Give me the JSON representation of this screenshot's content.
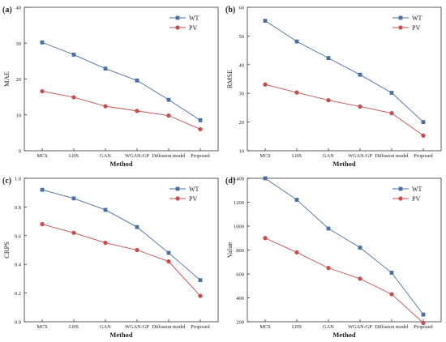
{
  "chart_data": [
    {
      "type": "line",
      "panel_label": "(a)",
      "xlabel": "Method",
      "ylabel": "MAE",
      "categories": [
        "MCS",
        "LHS",
        "GAN",
        "WGAN-GP",
        "Diffusion model",
        "Proposed"
      ],
      "ylim": [
        0,
        40
      ],
      "yticks": [
        0,
        10,
        20,
        30,
        40
      ],
      "grid": false,
      "legend": "top-right",
      "series": [
        {
          "name": "WT",
          "color": "#4a6fa5",
          "marker": "square",
          "values": [
            30.2,
            26.8,
            22.9,
            19.6,
            14.2,
            8.5
          ]
        },
        {
          "name": "PV",
          "color": "#c94c4c",
          "marker": "circle",
          "values": [
            16.6,
            14.9,
            12.4,
            11.1,
            9.8,
            6.0
          ]
        }
      ]
    },
    {
      "type": "line",
      "panel_label": "(b)",
      "xlabel": "Method",
      "ylabel": "RMSE",
      "categories": [
        "MCS",
        "LHS",
        "GAN",
        "WGAN-GP",
        "Diffusion model",
        "Proposed"
      ],
      "ylim": [
        10,
        60
      ],
      "yticks": [
        10,
        20,
        30,
        40,
        50,
        60
      ],
      "grid": false,
      "legend": "top-right",
      "series": [
        {
          "name": "WT",
          "color": "#4a6fa5",
          "marker": "square",
          "values": [
            55.3,
            48.1,
            42.3,
            36.5,
            30.2,
            20.0
          ]
        },
        {
          "name": "PV",
          "color": "#c94c4c",
          "marker": "circle",
          "values": [
            33.1,
            30.3,
            27.6,
            25.4,
            23.1,
            15.3
          ]
        }
      ]
    },
    {
      "type": "line",
      "panel_label": "(c)",
      "xlabel": "Method",
      "ylabel": "CRPS",
      "categories": [
        "MCS",
        "LHS",
        "GAN",
        "WGAN-GP",
        "Diffusion model",
        "Proposed"
      ],
      "ylim": [
        0.0,
        1.0
      ],
      "yticks": [
        "0.0",
        "0.2",
        "0.4",
        "0.6",
        "0.8",
        "1.0"
      ],
      "grid": false,
      "legend": "top-right",
      "series": [
        {
          "name": "WT",
          "color": "#4a6fa5",
          "marker": "square",
          "values": [
            0.92,
            0.86,
            0.78,
            0.66,
            0.48,
            0.29
          ]
        },
        {
          "name": "PV",
          "color": "#c94c4c",
          "marker": "circle",
          "values": [
            0.68,
            0.62,
            0.55,
            0.5,
            0.42,
            0.18
          ]
        }
      ]
    },
    {
      "type": "line",
      "panel_label": "(d)",
      "xlabel": "Method",
      "ylabel": "Value",
      "categories": [
        "MCS",
        "LHS",
        "GAN",
        "WGAN-GP",
        "Diffusion model",
        "Proposed"
      ],
      "ylim": [
        200,
        1400
      ],
      "yticks": [
        200,
        400,
        600,
        800,
        1000,
        1200,
        1400
      ],
      "grid": false,
      "legend": "top-right",
      "series": [
        {
          "name": "WT",
          "color": "#4a6fa5",
          "marker": "square",
          "values": [
            1400,
            1220,
            980,
            820,
            610,
            260
          ]
        },
        {
          "name": "PV",
          "color": "#c94c4c",
          "marker": "circle",
          "values": [
            900,
            780,
            650,
            560,
            430,
            190
          ]
        }
      ]
    }
  ]
}
